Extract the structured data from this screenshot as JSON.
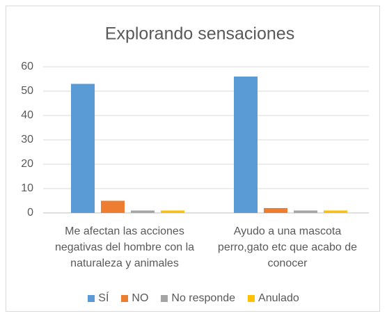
{
  "chart_data": {
    "type": "bar",
    "title": "Explorando sensaciones",
    "categories": [
      "Me afectan las acciones negativas del hombre con la naturaleza y animales",
      "Ayudo a una mascota perro,gato etc que acabo de conocer"
    ],
    "series": [
      {
        "name": "SÍ",
        "color": "#5b9bd5",
        "values": [
          53,
          56
        ]
      },
      {
        "name": "NO",
        "color": "#ed7d31",
        "values": [
          5,
          2
        ]
      },
      {
        "name": "No responde",
        "color": "#a5a5a5",
        "values": [
          1,
          1
        ]
      },
      {
        "name": "Anulado",
        "color": "#ffc000",
        "values": [
          1,
          1
        ]
      }
    ],
    "ylim": [
      0,
      60
    ],
    "yticks": [
      0,
      10,
      20,
      30,
      40,
      50,
      60
    ],
    "grid": true,
    "legend": "bottom"
  }
}
